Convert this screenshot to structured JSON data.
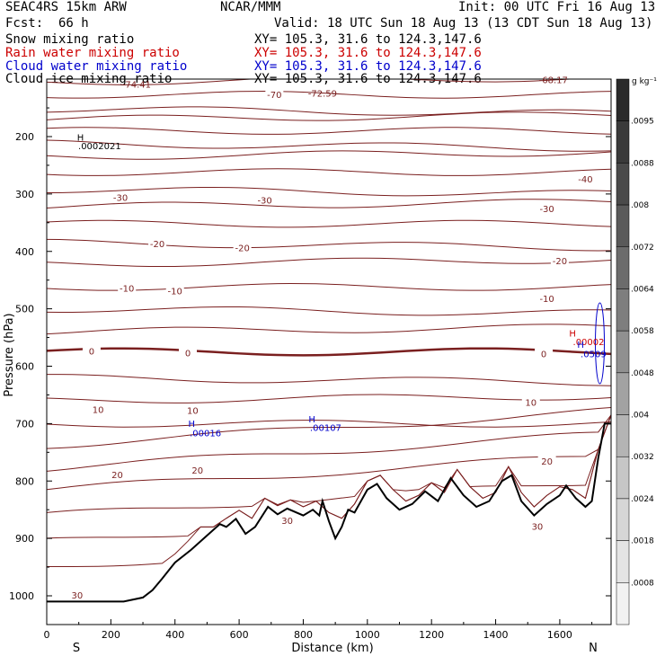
{
  "header": {
    "model": "SEAC4RS 15km ARW",
    "org": "NCAR/MMM",
    "init": "Init: 00 UTC Fri 16 Aug 13",
    "fcst_label": "Fcst:",
    "fcst_value": "66 h",
    "valid": "Valid: 18 UTC Sun 18 Aug 13 (13 CDT Sun 18 Aug 13)"
  },
  "legend": [
    {
      "name": "Snow mixing ratio",
      "xy": "XY= 105.3, 31.6 to 124.3,147.6",
      "color": "#000000"
    },
    {
      "name": "Rain water mixing ratio",
      "xy": "XY= 105.3, 31.6 to 124.3,147.6",
      "color": "#cc0000"
    },
    {
      "name": "Cloud water mixing ratio",
      "xy": "XY= 105.3, 31.6 to 124.3,147.6",
      "color": "#0000cc"
    },
    {
      "name": "Cloud ice mixing ratio",
      "xy": "XY= 105.3, 31.6 to 124.3,147.6",
      "color": "#000000"
    }
  ],
  "chart_data": {
    "type": "contour cross-section",
    "xlabel": "Distance (km)",
    "ylabel": "Pressure (hPa)",
    "xlim": [
      0,
      1760
    ],
    "ylim": [
      1050,
      100
    ],
    "x_ticks": [
      "0",
      "200",
      "400",
      "600",
      "800",
      "1000",
      "1200",
      "1400",
      "1600"
    ],
    "x_tick_values": [
      0,
      200,
      400,
      600,
      800,
      1000,
      1200,
      1400,
      1600
    ],
    "y_ticks": [
      "200",
      "300",
      "400",
      "500",
      "600",
      "700",
      "800",
      "900",
      "1000"
    ],
    "y_tick_values": [
      200,
      300,
      400,
      500,
      600,
      700,
      800,
      900,
      1000
    ],
    "start_label": "S",
    "end_label": "N",
    "colorbar": {
      "unit": "g kg⁻¹",
      "labels": [
        ".0095",
        ".0088",
        ".008",
        ".0072",
        ".0064",
        ".0058",
        ".0048",
        ".004",
        ".0032",
        ".0024",
        ".0018",
        ".0008"
      ],
      "colors": [
        "#2a2a2a",
        "#3a3a3a",
        "#4a4a4a",
        "#5a5a5a",
        "#6c6c6c",
        "#7e7e7e",
        "#909090",
        "#a2a2a2",
        "#b4b4b4",
        "#c6c6c6",
        "#d6d6d6",
        "#e4e4e4",
        "#f2f2f2"
      ]
    },
    "isotherm_color": "#7a1f1f",
    "isotherm_labels": [
      {
        "text": "-70",
        "x": 710,
        "p": 128
      },
      {
        "text": "-30",
        "x": 230,
        "p": 307
      },
      {
        "text": "-30",
        "x": 680,
        "p": 312
      },
      {
        "text": "-30",
        "x": 1560,
        "p": 327
      },
      {
        "text": "-40",
        "x": 1680,
        "p": 275
      },
      {
        "text": "-20",
        "x": 345,
        "p": 388
      },
      {
        "text": "-20",
        "x": 610,
        "p": 395
      },
      {
        "text": "-20",
        "x": 1600,
        "p": 418
      },
      {
        "text": "-10",
        "x": 250,
        "p": 465
      },
      {
        "text": "-10",
        "x": 400,
        "p": 470
      },
      {
        "text": "-10",
        "x": 1560,
        "p": 483
      },
      {
        "text": "0",
        "x": 140,
        "p": 575
      },
      {
        "text": "0",
        "x": 440,
        "p": 578
      },
      {
        "text": "0",
        "x": 1550,
        "p": 580
      },
      {
        "text": "10",
        "x": 160,
        "p": 677
      },
      {
        "text": "10",
        "x": 455,
        "p": 678
      },
      {
        "text": "10",
        "x": 1510,
        "p": 664
      },
      {
        "text": "20",
        "x": 220,
        "p": 790
      },
      {
        "text": "20",
        "x": 470,
        "p": 782
      },
      {
        "text": "20",
        "x": 1560,
        "p": 767
      },
      {
        "text": "30",
        "x": 750,
        "p": 870
      },
      {
        "text": "30",
        "x": 1530,
        "p": 880
      },
      {
        "text": "30",
        "x": 95,
        "p": 1000
      }
    ],
    "extrema_labels": [
      {
        "text": "-74.41",
        "x": 280,
        "p": 115,
        "color": "#7a1f1f"
      },
      {
        "text": "-72.59",
        "x": 860,
        "p": 130,
        "color": "#7a1f1f"
      },
      {
        "text": "-68.17",
        "x": 1580,
        "p": 107,
        "color": "#7a1f1f"
      },
      {
        "text": "H",
        "x": 105,
        "p": 207,
        "color": "#000000"
      },
      {
        "text": ".0002021",
        "x": 165,
        "p": 222,
        "color": "#000000"
      },
      {
        "text": "H",
        "x": 1640,
        "p": 548,
        "color": "#cc0000"
      },
      {
        "text": ".00002",
        "x": 1690,
        "p": 563,
        "color": "#cc0000"
      },
      {
        "text": "H",
        "x": 1665,
        "p": 568,
        "color": "#0000cc"
      },
      {
        "text": ".0509",
        "x": 1705,
        "p": 584,
        "color": "#0000cc"
      },
      {
        "text": "H",
        "x": 452,
        "p": 706,
        "color": "#0000cc"
      },
      {
        "text": ".00016",
        "x": 495,
        "p": 722,
        "color": "#0000cc"
      },
      {
        "text": "H",
        "x": 827,
        "p": 698,
        "color": "#0000cc"
      },
      {
        "text": ".00107",
        "x": 870,
        "p": 713,
        "color": "#0000cc"
      }
    ]
  }
}
